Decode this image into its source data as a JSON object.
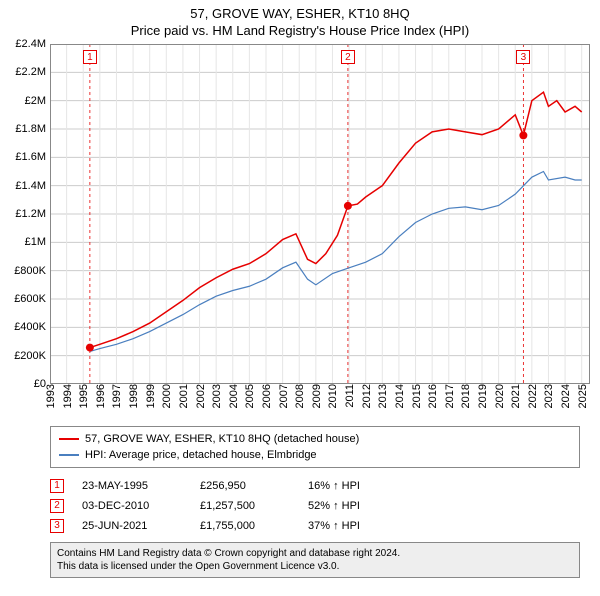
{
  "title": "57, GROVE WAY, ESHER, KT10 8HQ",
  "subtitle": "Price paid vs. HM Land Registry's House Price Index (HPI)",
  "chart": {
    "type": "line",
    "background_color": "#ffffff",
    "grid_color_major": "#cccccc",
    "grid_color_minor": "#e6e6e6",
    "axis_font_size": 11,
    "x": {
      "min": 1993,
      "max": 2025.5,
      "ticks": [
        1993,
        1994,
        1995,
        1996,
        1997,
        1998,
        1999,
        2000,
        2001,
        2002,
        2003,
        2004,
        2005,
        2006,
        2007,
        2008,
        2009,
        2010,
        2011,
        2012,
        2013,
        2014,
        2015,
        2016,
        2017,
        2018,
        2019,
        2020,
        2021,
        2022,
        2023,
        2024,
        2025
      ]
    },
    "y": {
      "min": 0,
      "max": 2400000,
      "tick_step": 200000,
      "labels": [
        "£0",
        "£200K",
        "£400K",
        "£600K",
        "£800K",
        "£1M",
        "£1.2M",
        "£1.4M",
        "£1.6M",
        "£1.8M",
        "£2M",
        "£2.2M",
        "£2.4M"
      ]
    },
    "series": [
      {
        "name": "57, GROVE WAY, ESHER, KT10 8HQ (detached house)",
        "color": "#e60000",
        "line_width": 1.5,
        "data": [
          [
            1995.4,
            256950
          ],
          [
            1996,
            280000
          ],
          [
            1997,
            320000
          ],
          [
            1998,
            370000
          ],
          [
            1999,
            430000
          ],
          [
            2000,
            510000
          ],
          [
            2001,
            590000
          ],
          [
            2002,
            680000
          ],
          [
            2003,
            750000
          ],
          [
            2004,
            810000
          ],
          [
            2005,
            850000
          ],
          [
            2006,
            920000
          ],
          [
            2007,
            1020000
          ],
          [
            2007.8,
            1060000
          ],
          [
            2008.5,
            880000
          ],
          [
            2009,
            850000
          ],
          [
            2009.6,
            920000
          ],
          [
            2010.3,
            1050000
          ],
          [
            2010.93,
            1257500
          ],
          [
            2011.5,
            1270000
          ],
          [
            2012,
            1320000
          ],
          [
            2013,
            1400000
          ],
          [
            2014,
            1560000
          ],
          [
            2015,
            1700000
          ],
          [
            2016,
            1780000
          ],
          [
            2017,
            1800000
          ],
          [
            2018,
            1780000
          ],
          [
            2019,
            1760000
          ],
          [
            2020,
            1800000
          ],
          [
            2021,
            1900000
          ],
          [
            2021.49,
            1755000
          ],
          [
            2022,
            2000000
          ],
          [
            2022.7,
            2060000
          ],
          [
            2023,
            1960000
          ],
          [
            2023.5,
            2000000
          ],
          [
            2024,
            1920000
          ],
          [
            2024.6,
            1960000
          ],
          [
            2025,
            1920000
          ]
        ]
      },
      {
        "name": "HPI: Average price, detached house, Elmbridge",
        "color": "#4a7fbf",
        "line_width": 1.2,
        "data": [
          [
            1995.4,
            230000
          ],
          [
            1996,
            250000
          ],
          [
            1997,
            280000
          ],
          [
            1998,
            320000
          ],
          [
            1999,
            370000
          ],
          [
            2000,
            430000
          ],
          [
            2001,
            490000
          ],
          [
            2002,
            560000
          ],
          [
            2003,
            620000
          ],
          [
            2004,
            660000
          ],
          [
            2005,
            690000
          ],
          [
            2006,
            740000
          ],
          [
            2007,
            820000
          ],
          [
            2007.8,
            860000
          ],
          [
            2008.5,
            740000
          ],
          [
            2009,
            700000
          ],
          [
            2010,
            780000
          ],
          [
            2011,
            820000
          ],
          [
            2012,
            860000
          ],
          [
            2013,
            920000
          ],
          [
            2014,
            1040000
          ],
          [
            2015,
            1140000
          ],
          [
            2016,
            1200000
          ],
          [
            2017,
            1240000
          ],
          [
            2018,
            1250000
          ],
          [
            2019,
            1230000
          ],
          [
            2020,
            1260000
          ],
          [
            2021,
            1340000
          ],
          [
            2022,
            1460000
          ],
          [
            2022.7,
            1500000
          ],
          [
            2023,
            1440000
          ],
          [
            2024,
            1460000
          ],
          [
            2024.6,
            1440000
          ],
          [
            2025,
            1440000
          ]
        ]
      }
    ],
    "markers": [
      {
        "label": "1",
        "x": 1995.4,
        "y": 256950,
        "color": "#e60000"
      },
      {
        "label": "2",
        "x": 2010.93,
        "y": 1257500,
        "color": "#e60000"
      },
      {
        "label": "3",
        "x": 2021.49,
        "y": 1755000,
        "color": "#e60000"
      }
    ]
  },
  "legend": {
    "items": [
      {
        "color": "#e60000",
        "label": "57, GROVE WAY, ESHER, KT10 8HQ (detached house)"
      },
      {
        "color": "#4a7fbf",
        "label": "HPI: Average price, detached house, Elmbridge"
      }
    ]
  },
  "events": [
    {
      "badge": "1",
      "badge_color": "#e60000",
      "date": "23-MAY-1995",
      "price": "£256,950",
      "delta": "16% ↑ HPI"
    },
    {
      "badge": "2",
      "badge_color": "#e60000",
      "date": "03-DEC-2010",
      "price": "£1,257,500",
      "delta": "52% ↑ HPI"
    },
    {
      "badge": "3",
      "badge_color": "#e60000",
      "date": "25-JUN-2021",
      "price": "£1,755,000",
      "delta": "37% ↑ HPI"
    }
  ],
  "footer": {
    "line1": "Contains HM Land Registry data © Crown copyright and database right 2024.",
    "line2": "This data is licensed under the Open Government Licence v3.0."
  }
}
